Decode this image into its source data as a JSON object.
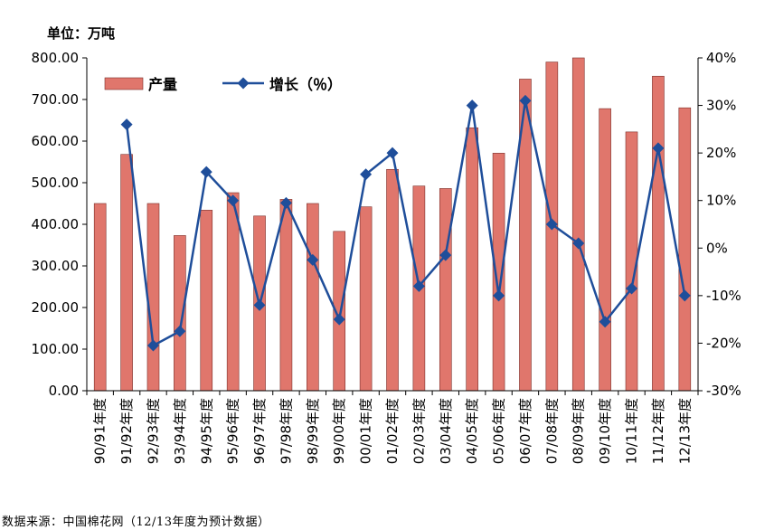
{
  "unit_label": "单位：万吨",
  "source_note": "数据来源：中国棉花网（12/13年度为预计数据）",
  "colors": {
    "bar_fill": "#E0766C",
    "bar_stroke": "#7a2f2a",
    "line": "#1F4E9A",
    "axis": "#000000"
  },
  "chart_data": {
    "type": "bar",
    "categories": [
      "90/91年度",
      "91/92年度",
      "92/93年度",
      "93/94年度",
      "94/95年度",
      "95/96年度",
      "96/97年度",
      "97/98年度",
      "98/99年度",
      "99/00年度",
      "00/01年度",
      "01/02年度",
      "02/03年度",
      "03/04年度",
      "04/05年度",
      "05/06年度",
      "06/07年度",
      "07/08年度",
      "08/09年度",
      "09/10年度",
      "10/11年度",
      "11/12年度",
      "12/13年度"
    ],
    "series": [
      {
        "name": "产量",
        "type": "bar",
        "axis": "left",
        "values": [
          450,
          568,
          450,
          373,
          434,
          476,
          420,
          460,
          450,
          383,
          442,
          532,
          492,
          486,
          632,
          571,
          749,
          790,
          800,
          678,
          622,
          756,
          680
        ]
      },
      {
        "name": "增长（％）",
        "type": "line",
        "axis": "right",
        "values": [
          null,
          26,
          -20.5,
          -17.5,
          16,
          10,
          -12,
          9.5,
          -2.5,
          -15,
          15.5,
          20,
          -8,
          -1.5,
          30,
          -10,
          31,
          5,
          1,
          -15.5,
          -8.5,
          21,
          -10
        ]
      }
    ],
    "y_left": {
      "min": 0,
      "max": 800,
      "ticks": [
        "0.00",
        "100.00",
        "200.00",
        "300.00",
        "400.00",
        "500.00",
        "600.00",
        "700.00",
        "800.00"
      ]
    },
    "y_right": {
      "min": -30,
      "max": 40,
      "ticks": [
        "-30%",
        "-20%",
        "-10%",
        "0%",
        "10%",
        "20%",
        "30%",
        "40%"
      ]
    },
    "legend": [
      {
        "label": "产量",
        "kind": "bar"
      },
      {
        "label": "增长（％）",
        "kind": "line"
      }
    ],
    "legend_position": "top-left",
    "grid": false
  }
}
